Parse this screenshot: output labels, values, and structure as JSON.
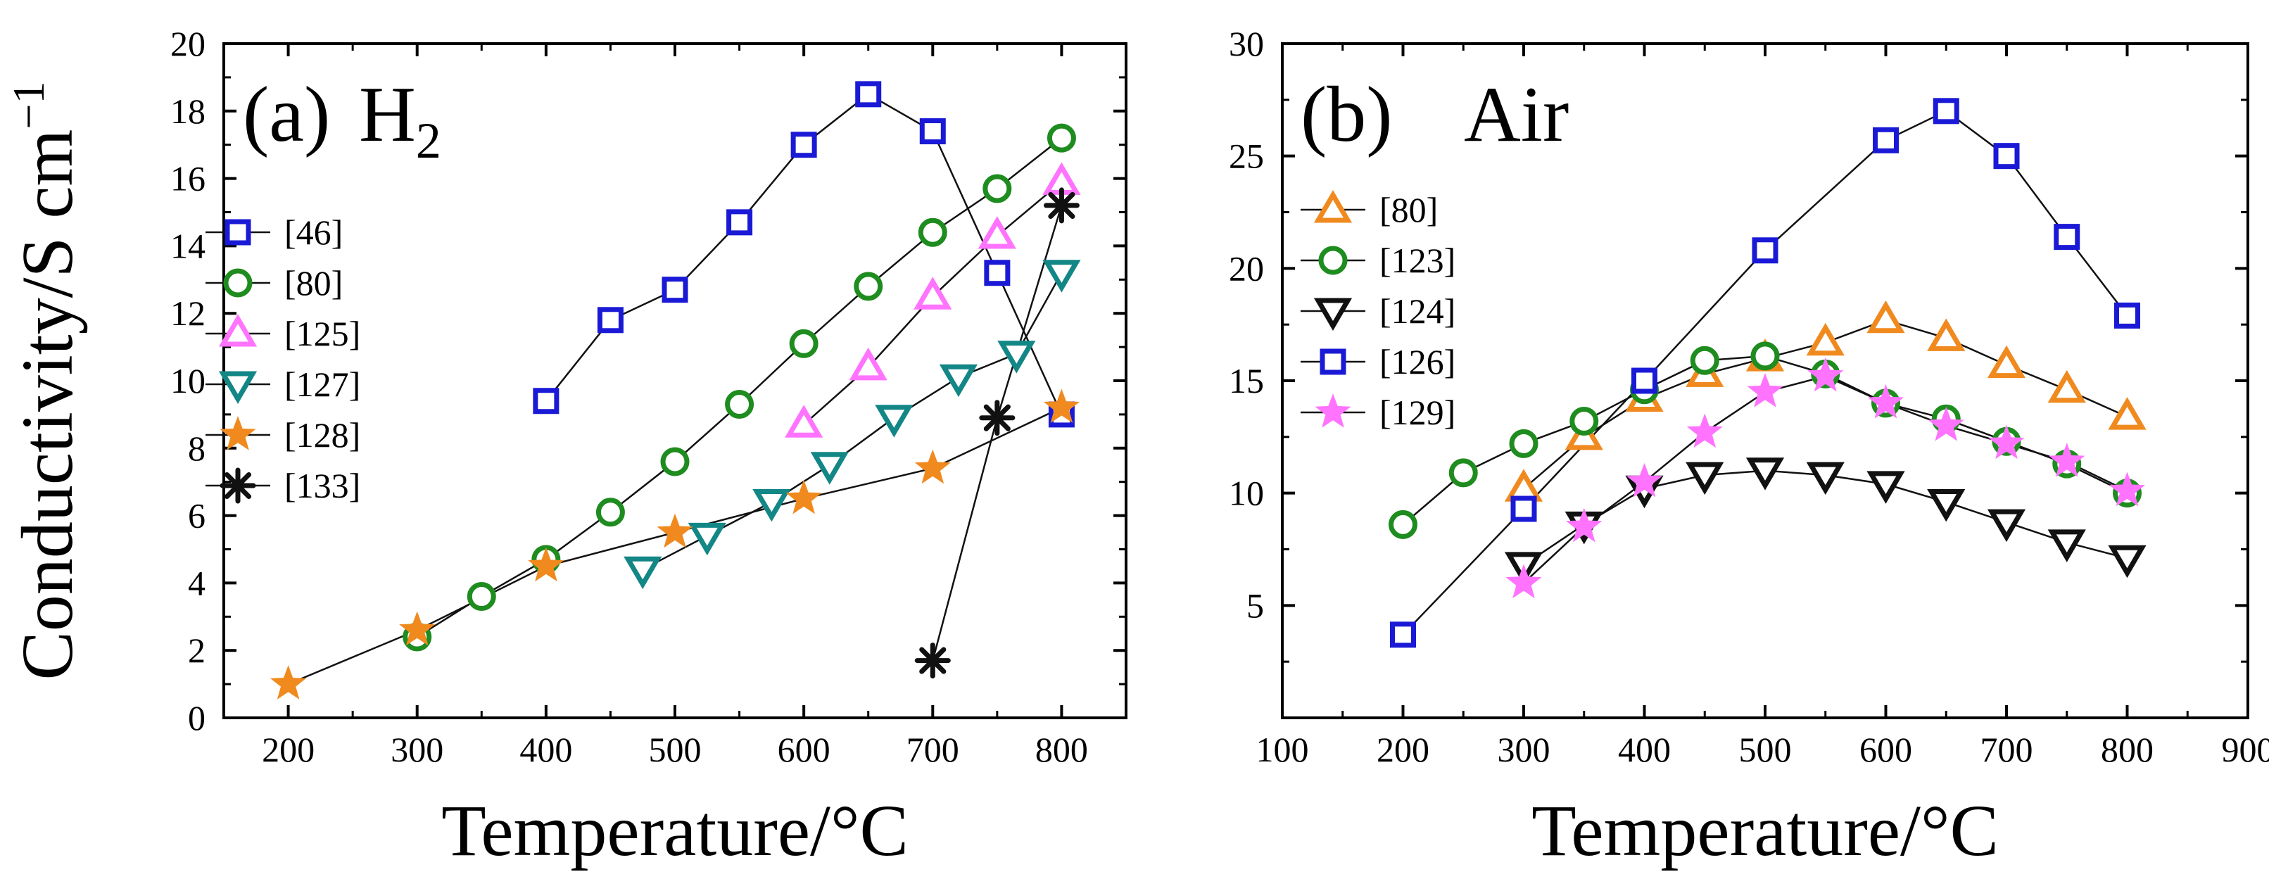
{
  "chart_data": [
    {
      "type": "line",
      "panel_label": "(a)",
      "title_main": "H",
      "title_sub": "2",
      "xlabel": "Temperature/°C",
      "ylabel": "Conductivity/S cm",
      "ylabel_sup": "−1",
      "xlim": [
        150,
        850
      ],
      "ylim": [
        0,
        20
      ],
      "xticks": [
        200,
        300,
        400,
        500,
        600,
        700,
        800
      ],
      "yticks": [
        0,
        2,
        4,
        6,
        8,
        10,
        12,
        14,
        16,
        18,
        20
      ],
      "series": [
        {
          "name": "[46]",
          "marker": "square",
          "color": "#1a1ad6",
          "x": [
            400,
            450,
            500,
            550,
            600,
            650,
            700,
            750,
            800
          ],
          "y": [
            9.4,
            11.8,
            12.7,
            14.7,
            17.0,
            18.5,
            17.4,
            13.2,
            9.0
          ]
        },
        {
          "name": "[80]",
          "marker": "circle",
          "color": "#1e8c1e",
          "x": [
            300,
            350,
            400,
            450,
            500,
            550,
            600,
            650,
            700,
            750,
            800
          ],
          "y": [
            2.4,
            3.6,
            4.7,
            6.1,
            7.6,
            9.3,
            11.1,
            12.8,
            14.4,
            15.7,
            17.2
          ]
        },
        {
          "name": "[125]",
          "marker": "triangle-up",
          "color": "#ff73ff",
          "x": [
            600,
            650,
            700,
            750,
            800
          ],
          "y": [
            8.7,
            10.4,
            12.5,
            14.3,
            15.9
          ]
        },
        {
          "name": "[127]",
          "marker": "triangle-down",
          "color": "#138686",
          "x": [
            475,
            525,
            575,
            620,
            670,
            720,
            765,
            800
          ],
          "y": [
            4.4,
            5.4,
            6.4,
            7.5,
            8.9,
            10.1,
            10.8,
            13.2
          ]
        },
        {
          "name": "[128]",
          "marker": "star",
          "color": "#f08a1e",
          "x": [
            200,
            300,
            400,
            500,
            600,
            700,
            800
          ],
          "y": [
            1.0,
            2.6,
            4.5,
            5.5,
            6.5,
            7.4,
            9.2
          ]
        },
        {
          "name": "[133]",
          "marker": "asterisk",
          "color": "#111111",
          "x": [
            700,
            750,
            800
          ],
          "y": [
            1.7,
            8.9,
            15.2
          ]
        }
      ]
    },
    {
      "type": "line",
      "panel_label": "(b)",
      "title_main": "Air",
      "xlabel": "Temperature/°C",
      "xlim": [
        100,
        900
      ],
      "ylim": [
        0,
        30
      ],
      "xticks": [
        100,
        200,
        300,
        400,
        500,
        600,
        700,
        800,
        900
      ],
      "yticks": [
        5,
        10,
        15,
        20,
        25,
        30
      ],
      "series": [
        {
          "name": "[80]",
          "marker": "triangle-up",
          "color": "#f08a1e",
          "x": [
            300,
            350,
            400,
            450,
            500,
            550,
            600,
            650,
            700,
            750,
            800
          ],
          "y": [
            10.2,
            12.5,
            14.2,
            15.3,
            16.0,
            16.7,
            17.7,
            16.9,
            15.7,
            14.6,
            13.4
          ]
        },
        {
          "name": "[123]",
          "marker": "circle",
          "color": "#1e8c1e",
          "x": [
            200,
            250,
            300,
            350,
            400,
            450,
            500,
            550,
            600,
            650,
            700,
            750,
            800
          ],
          "y": [
            8.6,
            10.9,
            12.2,
            13.2,
            14.6,
            15.9,
            16.1,
            15.3,
            14.0,
            13.3,
            12.3,
            11.3,
            10.0
          ]
        },
        {
          "name": "[124]",
          "marker": "triangle-down",
          "color": "#111111",
          "x": [
            300,
            350,
            400,
            450,
            500,
            550,
            600,
            650,
            700,
            750,
            800
          ],
          "y": [
            6.8,
            8.6,
            10.2,
            10.8,
            11.0,
            10.8,
            10.4,
            9.6,
            8.7,
            7.8,
            7.1
          ]
        },
        {
          "name": "[126]",
          "marker": "square",
          "color": "#1a1ad6",
          "x": [
            200,
            300,
            400,
            500,
            600,
            650,
            700,
            750,
            800
          ],
          "y": [
            3.7,
            9.3,
            15.0,
            20.8,
            25.7,
            27.0,
            25.0,
            21.4,
            17.9
          ]
        },
        {
          "name": "[129]",
          "marker": "star",
          "color": "#ff73ff",
          "x": [
            300,
            350,
            400,
            450,
            500,
            550,
            600,
            650,
            700,
            750,
            800
          ],
          "y": [
            6.0,
            8.5,
            10.5,
            12.7,
            14.5,
            15.2,
            14.0,
            13.0,
            12.2,
            11.4,
            10.1
          ]
        }
      ]
    }
  ]
}
